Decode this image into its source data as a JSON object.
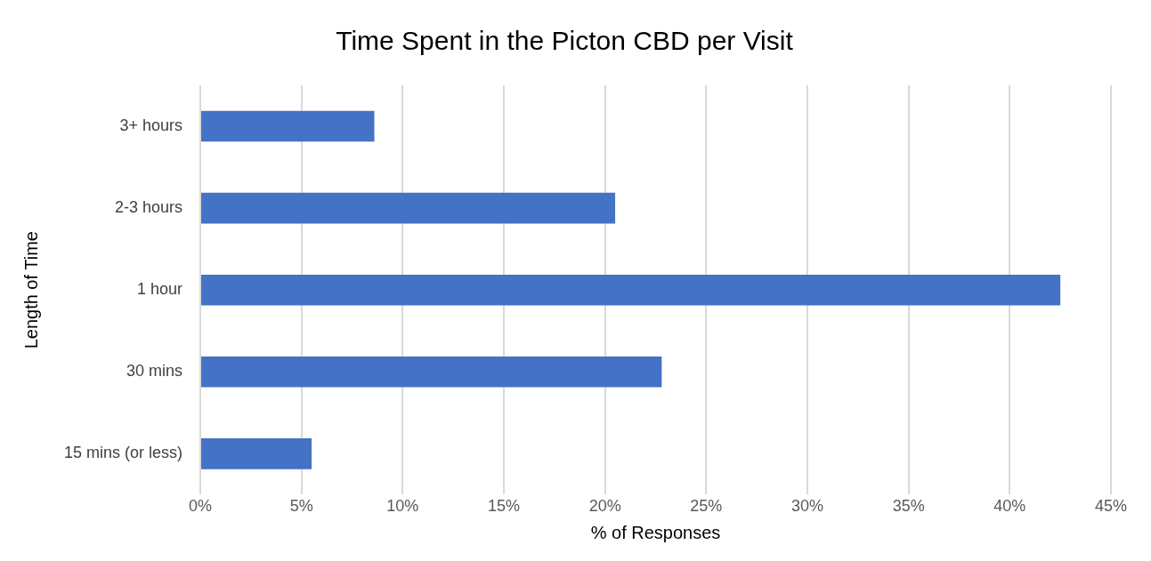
{
  "chart_data": {
    "type": "bar",
    "orientation": "horizontal",
    "title": "Time Spent in the Picton CBD per Visit",
    "xlabel": "% of Responses",
    "ylabel": "Length of Time",
    "categories": [
      "3+ hours",
      "2-3 hours",
      "1 hour",
      "30 mins",
      "15 mins (or less)"
    ],
    "values": [
      8.6,
      20.5,
      42.5,
      22.8,
      5.5
    ],
    "color": "#4472c4",
    "xlim": [
      0,
      45
    ],
    "xticks": [
      {
        "value": 0,
        "label": "0%"
      },
      {
        "value": 5,
        "label": "5%"
      },
      {
        "value": 10,
        "label": "10%"
      },
      {
        "value": 15,
        "label": "15%"
      },
      {
        "value": 20,
        "label": "20%"
      },
      {
        "value": 25,
        "label": "25%"
      },
      {
        "value": 30,
        "label": "30%"
      },
      {
        "value": 35,
        "label": "35%"
      },
      {
        "value": 40,
        "label": "40%"
      },
      {
        "value": 45,
        "label": "45%"
      }
    ],
    "grid": "x",
    "legend": false
  }
}
